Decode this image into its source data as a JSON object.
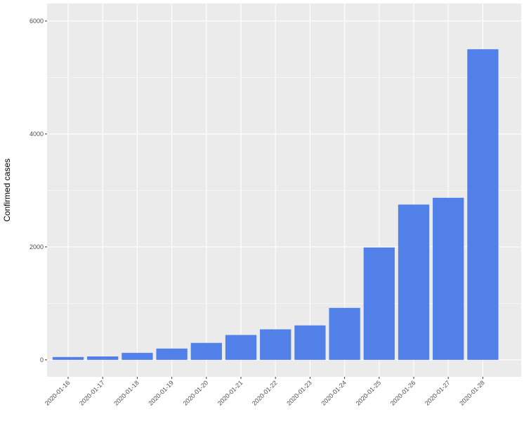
{
  "chart_data": {
    "type": "bar",
    "y_label": "Confirmed cases",
    "categories": [
      "2020-01-16",
      "2020-01-17",
      "2020-01-18",
      "2020-01-19",
      "2020-01-20",
      "2020-01-21",
      "2020-01-22",
      "2020-01-23",
      "2020-01-24",
      "2020-01-25",
      "2020-01-26",
      "2020-01-27",
      "2020-01-28"
    ],
    "values": [
      50,
      60,
      124,
      200,
      300,
      440,
      540,
      610,
      920,
      1990,
      2750,
      2870,
      5500
    ],
    "color": "#5080e8",
    "ylim": [
      -300,
      6310
    ],
    "yticks": [
      0,
      2000,
      4000,
      6000
    ],
    "y_minor_grid": [
      1000,
      3000,
      5000
    ],
    "grid": true
  }
}
